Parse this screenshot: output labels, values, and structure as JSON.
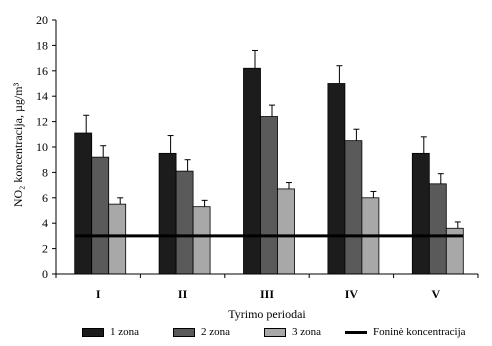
{
  "chart_data": {
    "type": "bar",
    "xlabel": "Tyrimo periodai",
    "ylabel": "NO₂ koncentracija, µg/m³",
    "ylim": [
      0,
      20
    ],
    "yticks": [
      0,
      2,
      4,
      6,
      8,
      10,
      12,
      14,
      16,
      18,
      20
    ],
    "categories": [
      "I",
      "II",
      "III",
      "IV",
      "V"
    ],
    "series": [
      {
        "name": "1 zona",
        "color": "#1c1c1c",
        "values": [
          11.1,
          9.5,
          16.2,
          15.0,
          9.5
        ],
        "errors": [
          1.4,
          1.4,
          1.4,
          1.4,
          1.3
        ]
      },
      {
        "name": "2 zona",
        "color": "#5a5a5a",
        "values": [
          9.2,
          8.1,
          12.4,
          10.5,
          7.1
        ],
        "errors": [
          0.9,
          0.9,
          0.9,
          0.9,
          0.8
        ]
      },
      {
        "name": "3 zona",
        "color": "#a8a8a8",
        "values": [
          5.5,
          5.3,
          6.7,
          6.0,
          3.6
        ],
        "errors": [
          0.5,
          0.5,
          0.5,
          0.5,
          0.5
        ]
      }
    ],
    "reference_line": {
      "name": "Foninė koncentracija",
      "value": 3.0,
      "color": "#000000"
    },
    "grid": false,
    "legend_position": "bottom"
  }
}
